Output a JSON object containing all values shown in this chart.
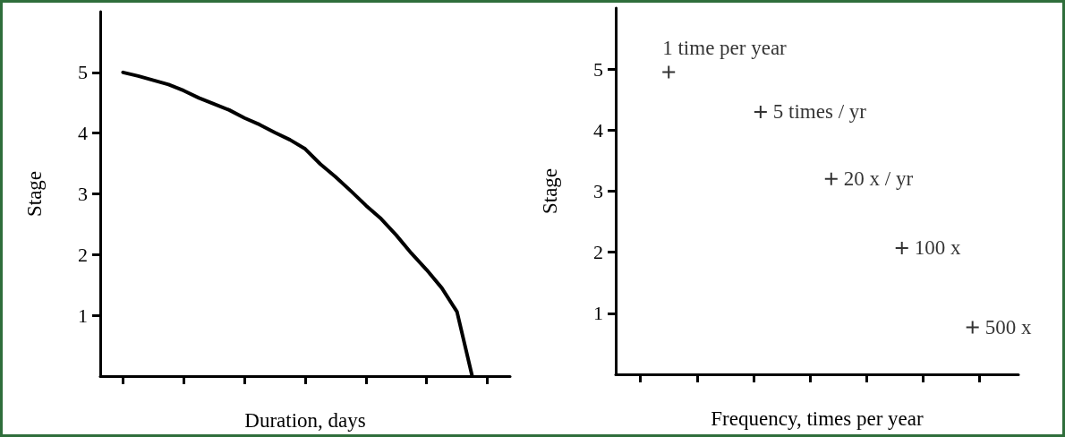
{
  "chart_data": [
    {
      "type": "line",
      "xlabel": "Duration, days",
      "ylabel": "Stage",
      "ylim": [
        0,
        6
      ],
      "yticks": [
        1,
        2,
        3,
        4,
        5
      ],
      "tick_labels": "y",
      "marker": "none",
      "color": "#000000",
      "categories": [
        null,
        null,
        null,
        null,
        null,
        null,
        null,
        null,
        null,
        null,
        null,
        null,
        null,
        null,
        null,
        null,
        null,
        null,
        null,
        null,
        null,
        null,
        null,
        null,
        null,
        null,
        null
      ],
      "values": [
        null,
        5.0,
        4.94,
        4.87,
        4.8,
        4.7,
        4.58,
        4.48,
        4.38,
        4.25,
        4.14,
        4.01,
        3.89,
        3.74,
        3.49,
        3.28,
        3.05,
        2.81,
        2.59,
        2.32,
        2.02,
        1.75,
        1.45,
        1.06,
        0,
        null,
        null
      ]
    },
    {
      "type": "scatter",
      "xlabel": "Frequency, times per year",
      "ylabel": "Stage",
      "ylim": [
        0,
        6
      ],
      "yticks": [
        1,
        2,
        3,
        4,
        5
      ],
      "tick_labels": "y",
      "marker": "cross",
      "color": "#000000",
      "categories": [
        null,
        null,
        null,
        null,
        null,
        null,
        null,
        null,
        null,
        null,
        null,
        null,
        null,
        null,
        null,
        null,
        null,
        null,
        null,
        null,
        null,
        null,
        null,
        null,
        null,
        null,
        null,
        null,
        null,
        null,
        null,
        null,
        null,
        null,
        null,
        null,
        null,
        null,
        null,
        null,
        null,
        null,
        null,
        null,
        null,
        null,
        null,
        null,
        null,
        null,
        null,
        null,
        null,
        null,
        null,
        null,
        null
      ],
      "values": [
        null,
        null,
        null,
        null,
        null,
        null,
        null,
        4.95,
        null,
        null,
        null,
        null,
        null,
        null,
        null,
        null,
        null,
        null,
        null,
        null,
        4.3,
        null,
        null,
        null,
        null,
        null,
        null,
        null,
        null,
        null,
        3.2,
        null,
        null,
        null,
        null,
        null,
        null,
        null,
        null,
        null,
        2.07,
        null,
        null,
        null,
        null,
        null,
        null,
        null,
        null,
        null,
        0.77,
        null,
        null,
        null,
        null,
        null,
        null
      ],
      "annotations": [
        "1 time per year",
        "5 times / yr",
        "20 x / yr",
        "100 x",
        "500 x"
      ]
    }
  ]
}
